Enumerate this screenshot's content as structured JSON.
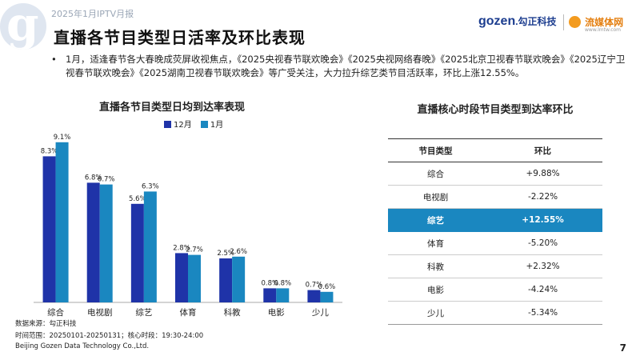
{
  "header": {
    "report_label": "2025年1月IPTV月报",
    "title": "直播各节目类型日活率及环比表现",
    "brand_gozen": "gozen",
    "brand_gozen_tail": ".勾正科技",
    "brand_lmtw": "流媒体网",
    "brand_lmtw_url": "www.lmtw.com"
  },
  "bullet": {
    "marker": "•",
    "text": "1月，适逢春节各大春晚成荧屏收视焦点，《2025央视春节联欢晚会》《2025央视网络春晚》《2025北京卫视春节联欢晚会》《2025辽宁卫视春节联欢晚会》《2025湖南卫视春节联欢晚会》等广受关注，大力拉升综艺类节目活跃率，环比上涨12.55%。"
  },
  "chart_data": {
    "type": "bar",
    "title": "直播各节目类型日均到达率表现",
    "categories": [
      "综合",
      "电视剧",
      "综艺",
      "体育",
      "科教",
      "电影",
      "少儿"
    ],
    "series": [
      {
        "name": "12月",
        "values": [
          8.3,
          6.8,
          5.6,
          2.8,
          2.5,
          0.8,
          0.7
        ],
        "labels": [
          "8.3%",
          "6.8%",
          "5.6%",
          "2.8%",
          "2.5%",
          "0.8%",
          "0.7%"
        ],
        "color": "#1f33a8"
      },
      {
        "name": "1月",
        "values": [
          9.1,
          6.7,
          6.3,
          2.7,
          2.6,
          0.8,
          0.6
        ],
        "labels": [
          "9.1%",
          "6.7%",
          "6.3%",
          "2.7%",
          "2.6%",
          "0.8%",
          "0.6%"
        ],
        "color": "#1a87c0"
      }
    ],
    "ylim": [
      0,
      10
    ],
    "legend_position": "top",
    "grid": false
  },
  "table": {
    "title": "直播核心时段节目类型到达率环比",
    "headers": [
      "节目类型",
      "环比"
    ],
    "rows": [
      {
        "type": "综合",
        "change": "+9.88%"
      },
      {
        "type": "电视剧",
        "change": "-2.22%"
      },
      {
        "type": "综艺",
        "change": "+12.55%"
      },
      {
        "type": "体育",
        "change": "-5.20%"
      },
      {
        "type": "科教",
        "change": "+2.32%"
      },
      {
        "type": "电影",
        "change": "-4.24%"
      },
      {
        "type": "少儿",
        "change": "-5.34%"
      }
    ],
    "highlight_color": "#1a87c0"
  },
  "footer": {
    "source": "数据来源：勾正科技",
    "range": "时间范围：20250101-20250131；核心时段：19:30-24:00",
    "company": "Beijing Gozen Data Technology Co.,Ltd.",
    "page": "7"
  }
}
